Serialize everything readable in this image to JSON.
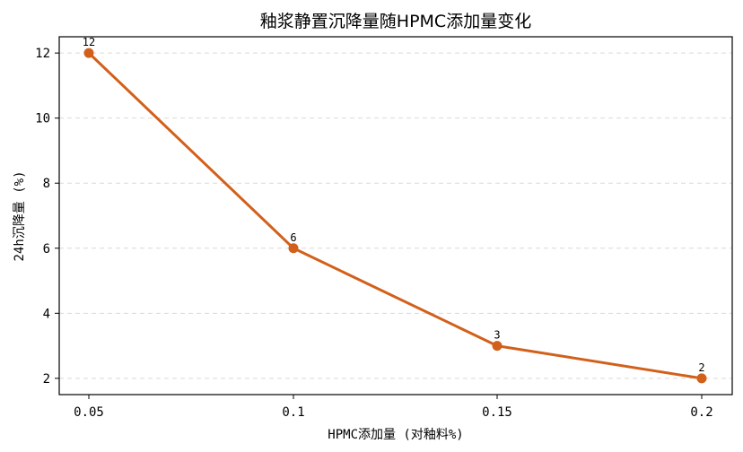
{
  "chart_data": {
    "type": "line",
    "title": "釉浆静置沉降量随HPMC添加量变化",
    "xlabel": "HPMC添加量 (对釉料%)",
    "ylabel": "24h沉降量 (%)",
    "x": [
      0.05,
      0.1,
      0.15,
      0.2
    ],
    "x_tick_labels": [
      "0.05",
      "0.1",
      "0.15",
      "0.2"
    ],
    "y_ticks": [
      2,
      4,
      6,
      8,
      10,
      12
    ],
    "ylim": [
      1.5,
      12.5
    ],
    "grid": "y-dashed",
    "series": [
      {
        "values": [
          12,
          6,
          3,
          2
        ],
        "data_labels": [
          "12",
          "6",
          "3",
          "2"
        ],
        "color": "#d2601a"
      }
    ]
  }
}
